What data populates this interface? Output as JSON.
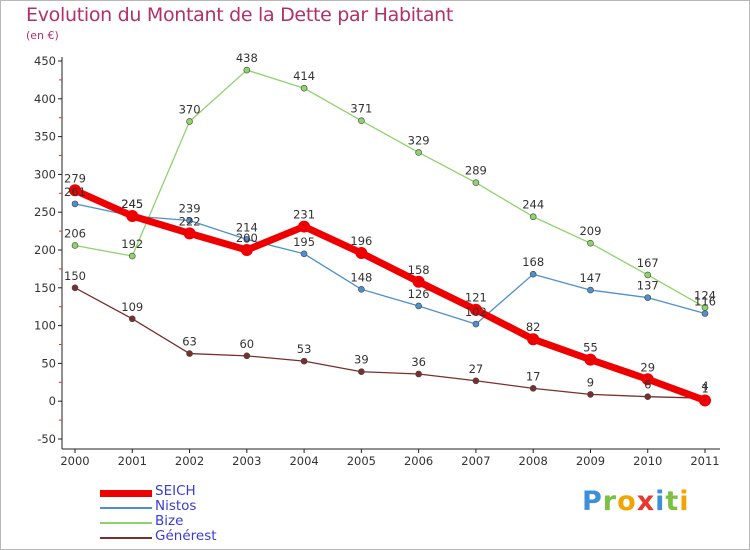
{
  "chart_data": {
    "type": "line",
    "title": "Evolution du Montant de la Dette par Habitant",
    "subtitle": "(en €)",
    "x": [
      "2000",
      "2001",
      "2002",
      "2003",
      "2004",
      "2005",
      "2006",
      "2007",
      "2008",
      "2009",
      "2010",
      "2011"
    ],
    "yticks": [
      "450",
      "400",
      "350",
      "300",
      "250",
      "200",
      "150",
      "100",
      "50",
      "0",
      "-50"
    ],
    "ylim": [
      -50,
      450
    ],
    "grid": false,
    "legend_position": "bottom-left",
    "series": [
      {
        "name": "SEICH",
        "color": "#ee0000",
        "values": [
          279,
          245,
          222,
          200,
          231,
          196,
          158,
          121,
          82,
          55,
          29,
          1
        ],
        "labels": [
          "279",
          "245",
          "222",
          "200",
          "231",
          "196",
          "158",
          "121",
          "82",
          "55",
          "29",
          "1"
        ]
      },
      {
        "name": "Nistos",
        "color": "#4f8fcb",
        "values": [
          261,
          245,
          239,
          214,
          195,
          148,
          126,
          102,
          168,
          147,
          137,
          116
        ],
        "labels": [
          "261",
          "245",
          "239",
          "214",
          "195",
          "148",
          "126",
          "102",
          "168",
          "147",
          "137",
          "116"
        ]
      },
      {
        "name": "Bize",
        "color": "#8ed36b",
        "values": [
          206,
          192,
          370,
          438,
          414,
          371,
          329,
          289,
          244,
          209,
          167,
          124
        ],
        "labels": [
          "206",
          "192",
          "370",
          "438",
          "414",
          "371",
          "329",
          "289",
          "244",
          "209",
          "167",
          "124"
        ]
      },
      {
        "name": "Générest",
        "color": "#7a2f2f",
        "values": [
          150,
          109,
          63,
          60,
          53,
          39,
          36,
          27,
          17,
          9,
          6,
          4
        ],
        "labels": [
          "150",
          "109",
          "63",
          "60",
          "53",
          "39",
          "36",
          "27",
          "17",
          "9",
          "6",
          "4"
        ]
      }
    ]
  },
  "brand": {
    "text": "Proxiti",
    "letters": [
      {
        "ch": "P",
        "color": "#3f8fd8"
      },
      {
        "ch": "r",
        "color": "#7cc242"
      },
      {
        "ch": "o",
        "color": "#f2a400"
      },
      {
        "ch": "x",
        "color": "#e8382e"
      },
      {
        "ch": "i",
        "color": "#3f8fd8"
      },
      {
        "ch": "t",
        "color": "#7cc242"
      },
      {
        "ch": "i",
        "color": "#f2a400"
      }
    ]
  }
}
